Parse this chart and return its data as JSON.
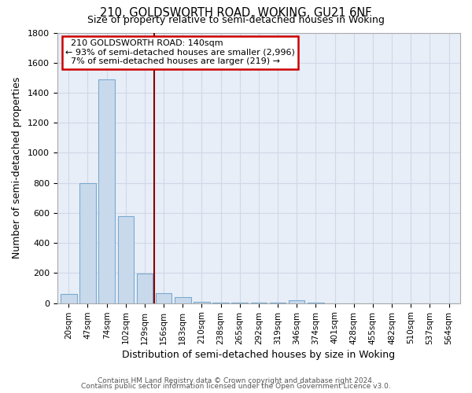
{
  "title": "210, GOLDSWORTH ROAD, WOKING, GU21 6NF",
  "subtitle": "Size of property relative to semi-detached houses in Woking",
  "xlabel": "Distribution of semi-detached houses by size in Woking",
  "ylabel": "Number of semi-detached properties",
  "bin_labels": [
    "20sqm",
    "47sqm",
    "74sqm",
    "102sqm",
    "129sqm",
    "156sqm",
    "183sqm",
    "210sqm",
    "238sqm",
    "265sqm",
    "292sqm",
    "319sqm",
    "346sqm",
    "374sqm",
    "401sqm",
    "428sqm",
    "455sqm",
    "482sqm",
    "510sqm",
    "537sqm",
    "564sqm"
  ],
  "bar_heights": [
    60,
    800,
    1490,
    580,
    195,
    65,
    40,
    10,
    5,
    2,
    2,
    2,
    18,
    2,
    0,
    0,
    0,
    0,
    0,
    0,
    0
  ],
  "bar_color": "#c9d9ec",
  "bar_edge_color": "#7aaacf",
  "red_line_x": 4.5,
  "annotation_title": "210 GOLDSWORTH ROAD: 140sqm",
  "annotation_line1": "← 93% of semi-detached houses are smaller (2,996)",
  "annotation_line2": "7% of semi-detached houses are larger (219) →",
  "annotation_box_color": "#ffffff",
  "annotation_box_edge": "#cc0000",
  "red_line_color": "#8b0000",
  "ylim": [
    0,
    1800
  ],
  "yticks": [
    0,
    200,
    400,
    600,
    800,
    1000,
    1200,
    1400,
    1600,
    1800
  ],
  "grid_color": "#d0d8e8",
  "footer_line1": "Contains HM Land Registry data © Crown copyright and database right 2024.",
  "footer_line2": "Contains public sector information licensed under the Open Government Licence v3.0.",
  "bg_color": "#ffffff",
  "plot_bg_color": "#e8eef7"
}
